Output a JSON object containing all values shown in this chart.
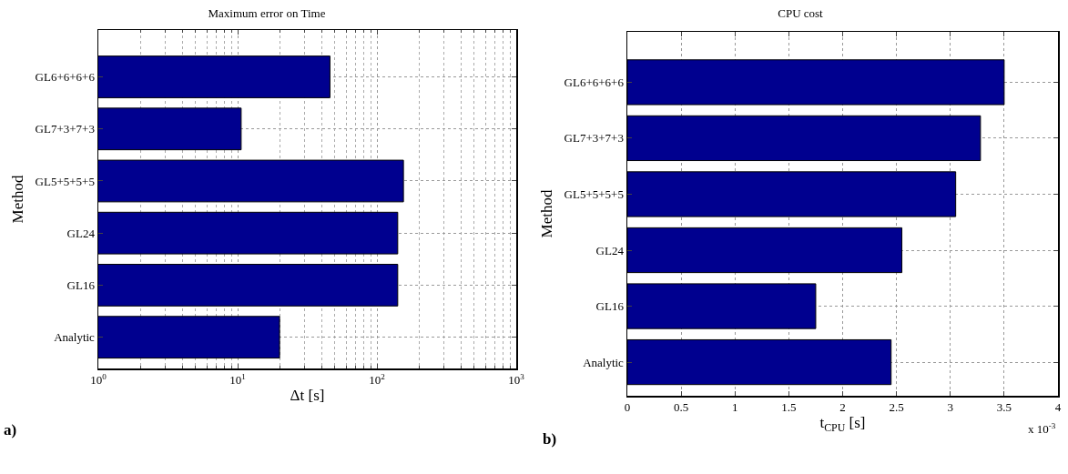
{
  "chart_data": [
    {
      "type": "bar",
      "orientation": "horizontal",
      "title": "Maximum error on Time",
      "xlabel": "Δt [s]",
      "ylabel": "Method",
      "log": "x",
      "grid": true,
      "categories": [
        "GL6+6+6+6",
        "GL7+3+7+3",
        "GL5+5+5+5",
        "GL24",
        "GL16",
        "Analytic"
      ],
      "values": [
        46,
        10.6,
        155,
        141,
        141,
        20
      ],
      "color": "#00008f",
      "xlim": [
        1,
        1000
      ],
      "xticks": [
        {
          "value": 1,
          "label": "10$^{0}$"
        },
        {
          "value": 10,
          "label": "10$^{1}$"
        },
        {
          "value": 100,
          "label": "10$^{2}$"
        },
        {
          "value": 1000,
          "label": "10$^{3}$"
        }
      ],
      "annotations": [
        "a)"
      ]
    },
    {
      "type": "bar",
      "orientation": "horizontal",
      "title": "CPU cost",
      "xlabel": "t$_{CPU}$ [s]",
      "ylabel": "Method",
      "grid": true,
      "categories": [
        "GL6+6+6+6",
        "GL7+3+7+3",
        "GL5+5+5+5",
        "GL24",
        "GL16",
        "Analytic"
      ],
      "values": [
        3.5,
        3.28,
        3.05,
        2.55,
        1.75,
        2.45
      ],
      "color": "#00008f",
      "xlim": [
        0,
        4
      ],
      "xticks": [
        0,
        0.5,
        1,
        1.5,
        2,
        2.5,
        3,
        3.5,
        4
      ],
      "annotations": [
        "x 10$^{-3}$",
        "b)"
      ]
    }
  ]
}
